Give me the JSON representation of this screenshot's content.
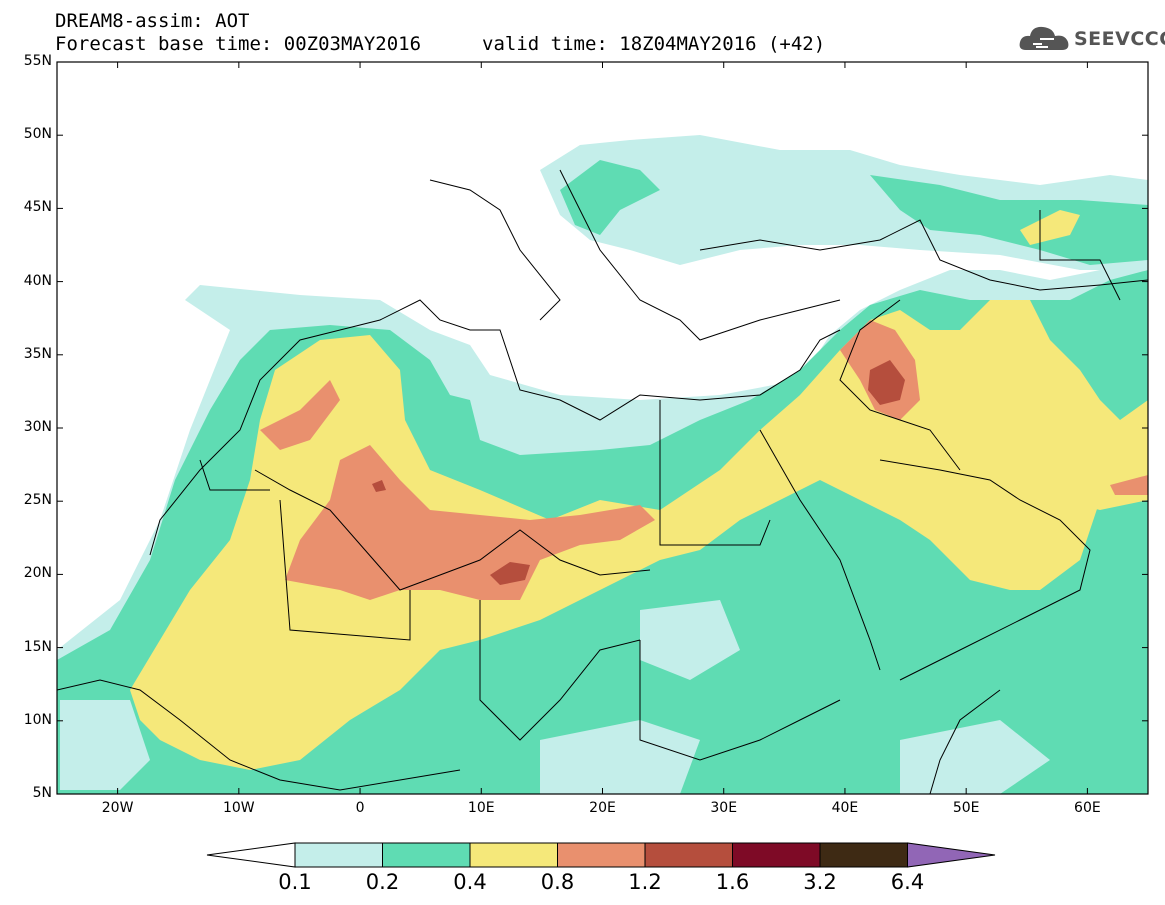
{
  "header": {
    "title": "DREAM8-assim: AOT",
    "base_time": "Forecast base time: 00Z03MAY2016",
    "valid_time": "valid time: 18Z04MAY2016 (+42)"
  },
  "logo": {
    "text": "SEEVCCC",
    "icon": "cloud-icon"
  },
  "map": {
    "projection": "lat-lon",
    "lon_range": [
      -25,
      65
    ],
    "lat_range": [
      5,
      55
    ],
    "lat_labels": [
      "5N",
      "10N",
      "15N",
      "20N",
      "25N",
      "30N",
      "35N",
      "40N",
      "45N",
      "50N",
      "55N"
    ],
    "lon_labels": [
      "20W",
      "10W",
      "0",
      "10E",
      "20E",
      "30E",
      "40E",
      "50E",
      "60E"
    ]
  },
  "colorbar": {
    "labels": [
      "0.1",
      "0.2",
      "0.4",
      "0.8",
      "1.2",
      "1.6",
      "3.2",
      "6.4"
    ],
    "colors": [
      "#ffffff",
      "#c4eeea",
      "#5fdcb3",
      "#f5e87a",
      "#e9906e",
      "#b54e3d",
      "#7e0a26",
      "#3e2a14",
      "#9166b6"
    ]
  }
}
